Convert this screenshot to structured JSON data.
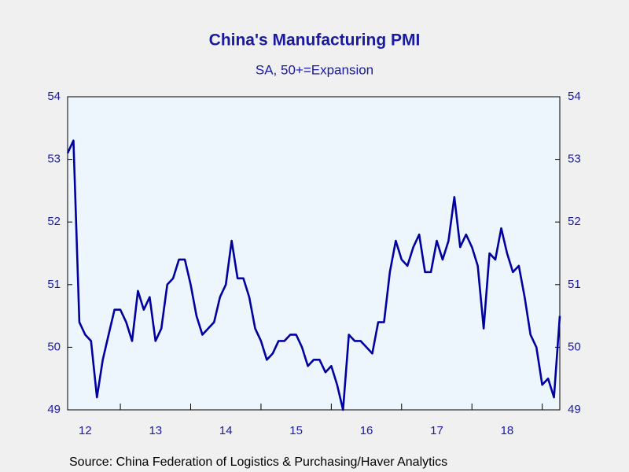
{
  "chart_data": {
    "type": "line",
    "title": "China's Manufacturing PMI",
    "subtitle": "SA, 50+=Expansion",
    "source": "Source:  China Federation of Logistics & Purchasing/Haver Analytics",
    "x": [
      2012.25,
      2012.333,
      2012.417,
      2012.5,
      2012.583,
      2012.667,
      2012.75,
      2012.833,
      2012.917,
      2013,
      2013.083,
      2013.167,
      2013.25,
      2013.333,
      2013.417,
      2013.5,
      2013.583,
      2013.667,
      2013.75,
      2013.833,
      2013.917,
      2014,
      2014.083,
      2014.167,
      2014.25,
      2014.333,
      2014.417,
      2014.5,
      2014.583,
      2014.667,
      2014.75,
      2014.833,
      2014.917,
      2015,
      2015.083,
      2015.167,
      2015.25,
      2015.333,
      2015.417,
      2015.5,
      2015.583,
      2015.667,
      2015.75,
      2015.833,
      2015.917,
      2016,
      2016.083,
      2016.167,
      2016.25,
      2016.333,
      2016.417,
      2016.5,
      2016.583,
      2016.667,
      2016.75,
      2016.833,
      2016.917,
      2017,
      2017.083,
      2017.167,
      2017.25,
      2017.333,
      2017.417,
      2017.5,
      2017.583,
      2017.667,
      2017.75,
      2017.833,
      2017.917,
      2018,
      2018.083,
      2018.167,
      2018.25,
      2018.333,
      2018.417,
      2018.5,
      2018.583,
      2018.667,
      2018.75,
      2018.833,
      2018.917,
      2019,
      2019.083,
      2019.167,
      2019.25
    ],
    "series": [
      {
        "name": "China's Manufacturing PMI",
        "color": "#0000a0",
        "values": [
          53.1,
          53.3,
          50.4,
          50.2,
          50.1,
          49.2,
          49.8,
          50.2,
          50.6,
          50.6,
          50.4,
          50.1,
          50.9,
          50.6,
          50.8,
          50.1,
          50.3,
          51.0,
          51.1,
          51.4,
          51.4,
          51.0,
          50.5,
          50.2,
          50.3,
          50.4,
          50.8,
          51.0,
          51.7,
          51.1,
          51.1,
          50.8,
          50.3,
          50.1,
          49.8,
          49.9,
          50.1,
          50.1,
          50.2,
          50.2,
          50.0,
          49.7,
          49.8,
          49.8,
          49.6,
          49.7,
          49.4,
          49.0,
          50.2,
          50.1,
          50.1,
          50.0,
          49.9,
          50.4,
          50.4,
          51.2,
          51.7,
          51.4,
          51.3,
          51.6,
          51.8,
          51.2,
          51.2,
          51.7,
          51.4,
          51.7,
          52.4,
          51.6,
          51.8,
          51.6,
          51.3,
          50.3,
          51.5,
          51.4,
          51.9,
          51.5,
          51.2,
          51.3,
          50.8,
          50.2,
          50.0,
          49.4,
          49.5,
          49.2,
          50.5
        ]
      }
    ],
    "xlim": [
      2012.25,
      2019.25
    ],
    "xticks": [
      {
        "value": 2012.5,
        "label": "12"
      },
      {
        "value": 2013.5,
        "label": "13"
      },
      {
        "value": 2014.5,
        "label": "14"
      },
      {
        "value": 2015.5,
        "label": "15"
      },
      {
        "value": 2016.5,
        "label": "16"
      },
      {
        "value": 2017.5,
        "label": "17"
      },
      {
        "value": 2018.5,
        "label": "18"
      }
    ],
    "xminorticks": [
      2013,
      2014,
      2015,
      2016,
      2017,
      2018,
      2019
    ],
    "ylim": [
      49,
      54
    ],
    "yticks": [
      49,
      50,
      51,
      52,
      53,
      54
    ],
    "y2lim": [
      49,
      54
    ],
    "y2ticks": [
      49,
      50,
      51,
      52,
      53,
      54
    ],
    "grid": false
  }
}
